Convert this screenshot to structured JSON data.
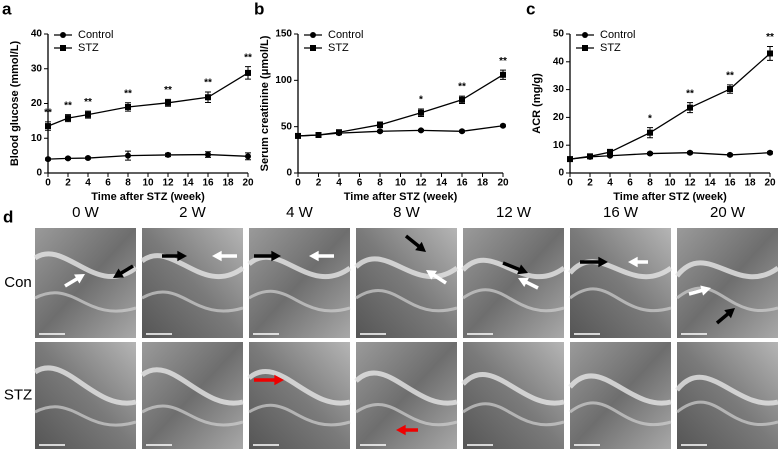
{
  "chart_data": [
    {
      "type": "line",
      "label": "a",
      "ylabel": "Blood glucose (mmol/L)",
      "xlabel": "Time after STZ (week)",
      "x": [
        0,
        2,
        4,
        8,
        12,
        16,
        20
      ],
      "xlim": [
        0,
        20
      ],
      "xticks": [
        0,
        2,
        4,
        6,
        8,
        10,
        12,
        14,
        16,
        18,
        20
      ],
      "ylim": [
        0,
        40
      ],
      "yticks": [
        0,
        10,
        20,
        30,
        40
      ],
      "legend": "upper left",
      "series": [
        {
          "name": "Control",
          "color": "#000000",
          "marker": "circle",
          "values": [
            4,
            4.2,
            4.3,
            5,
            5.2,
            5.3,
            4.8
          ],
          "errors": [
            0.3,
            0.3,
            0.3,
            1.3,
            0.5,
            0.8,
            1
          ]
        },
        {
          "name": "STZ",
          "color": "#000000",
          "marker": "square",
          "values": [
            13.5,
            15.8,
            16.8,
            19,
            20.2,
            21.8,
            28.8
          ],
          "errors": [
            1.2,
            1,
            1,
            1.2,
            1,
            1.5,
            1.8
          ]
        }
      ],
      "annotations": [
        {
          "x": 0,
          "text": "**"
        },
        {
          "x": 2,
          "text": "**"
        },
        {
          "x": 4,
          "text": "**"
        },
        {
          "x": 8,
          "text": "**"
        },
        {
          "x": 12,
          "text": "**"
        },
        {
          "x": 16,
          "text": "**"
        },
        {
          "x": 20,
          "text": "**"
        }
      ]
    },
    {
      "type": "line",
      "label": "b",
      "ylabel": "Serum creatinine (μmol/L)",
      "xlabel": "Time after STZ (week)",
      "x": [
        0,
        2,
        4,
        8,
        12,
        16,
        20
      ],
      "xlim": [
        0,
        20
      ],
      "xticks": [
        0,
        2,
        4,
        6,
        8,
        10,
        12,
        14,
        16,
        18,
        20
      ],
      "ylim": [
        0,
        150
      ],
      "yticks": [
        0,
        50,
        100,
        150
      ],
      "legend": "upper left",
      "series": [
        {
          "name": "Control",
          "color": "#000000",
          "marker": "circle",
          "values": [
            40,
            41,
            43,
            45,
            46,
            45,
            51
          ],
          "errors": [
            1,
            1,
            1,
            1,
            1,
            1,
            1
          ]
        },
        {
          "name": "STZ",
          "color": "#000000",
          "marker": "square",
          "values": [
            40,
            41,
            44,
            52,
            65,
            79,
            106
          ],
          "errors": [
            1,
            1,
            1,
            3,
            4,
            4,
            5
          ]
        }
      ],
      "annotations": [
        {
          "x": 12,
          "text": "*"
        },
        {
          "x": 16,
          "text": "**"
        },
        {
          "x": 20,
          "text": "**"
        }
      ]
    },
    {
      "type": "line",
      "label": "c",
      "ylabel": "ACR (mg/g)",
      "xlabel": "Time after STZ (week)",
      "x": [
        0,
        2,
        4,
        8,
        12,
        16,
        20
      ],
      "xlim": [
        0,
        20
      ],
      "xticks": [
        0,
        2,
        4,
        6,
        8,
        10,
        12,
        14,
        16,
        18,
        20
      ],
      "ylim": [
        0,
        50
      ],
      "yticks": [
        0,
        10,
        20,
        30,
        40,
        50
      ],
      "legend": "upper left",
      "series": [
        {
          "name": "Control",
          "color": "#000000",
          "marker": "circle",
          "values": [
            5,
            5.8,
            6.2,
            7,
            7.3,
            6.5,
            7.3
          ],
          "errors": [
            0.3,
            0.3,
            0.3,
            0.4,
            0.4,
            0.4,
            0.4
          ]
        },
        {
          "name": "STZ",
          "color": "#000000",
          "marker": "square",
          "values": [
            5,
            6,
            7.5,
            14.5,
            23.5,
            30.2,
            43
          ],
          "errors": [
            0.5,
            0.5,
            1,
            1.8,
            1.8,
            1.5,
            2.5
          ]
        }
      ],
      "annotations": [
        {
          "x": 8,
          "text": "*"
        },
        {
          "x": 12,
          "text": "**"
        },
        {
          "x": 16,
          "text": "**"
        },
        {
          "x": 20,
          "text": "**"
        }
      ]
    }
  ],
  "panel_d": {
    "label": "d",
    "columns": [
      "0 W",
      "2 W",
      "4 W",
      "8 W",
      "12 W",
      "16 W",
      "20 W"
    ],
    "rows": [
      "Con",
      "STZ"
    ]
  }
}
